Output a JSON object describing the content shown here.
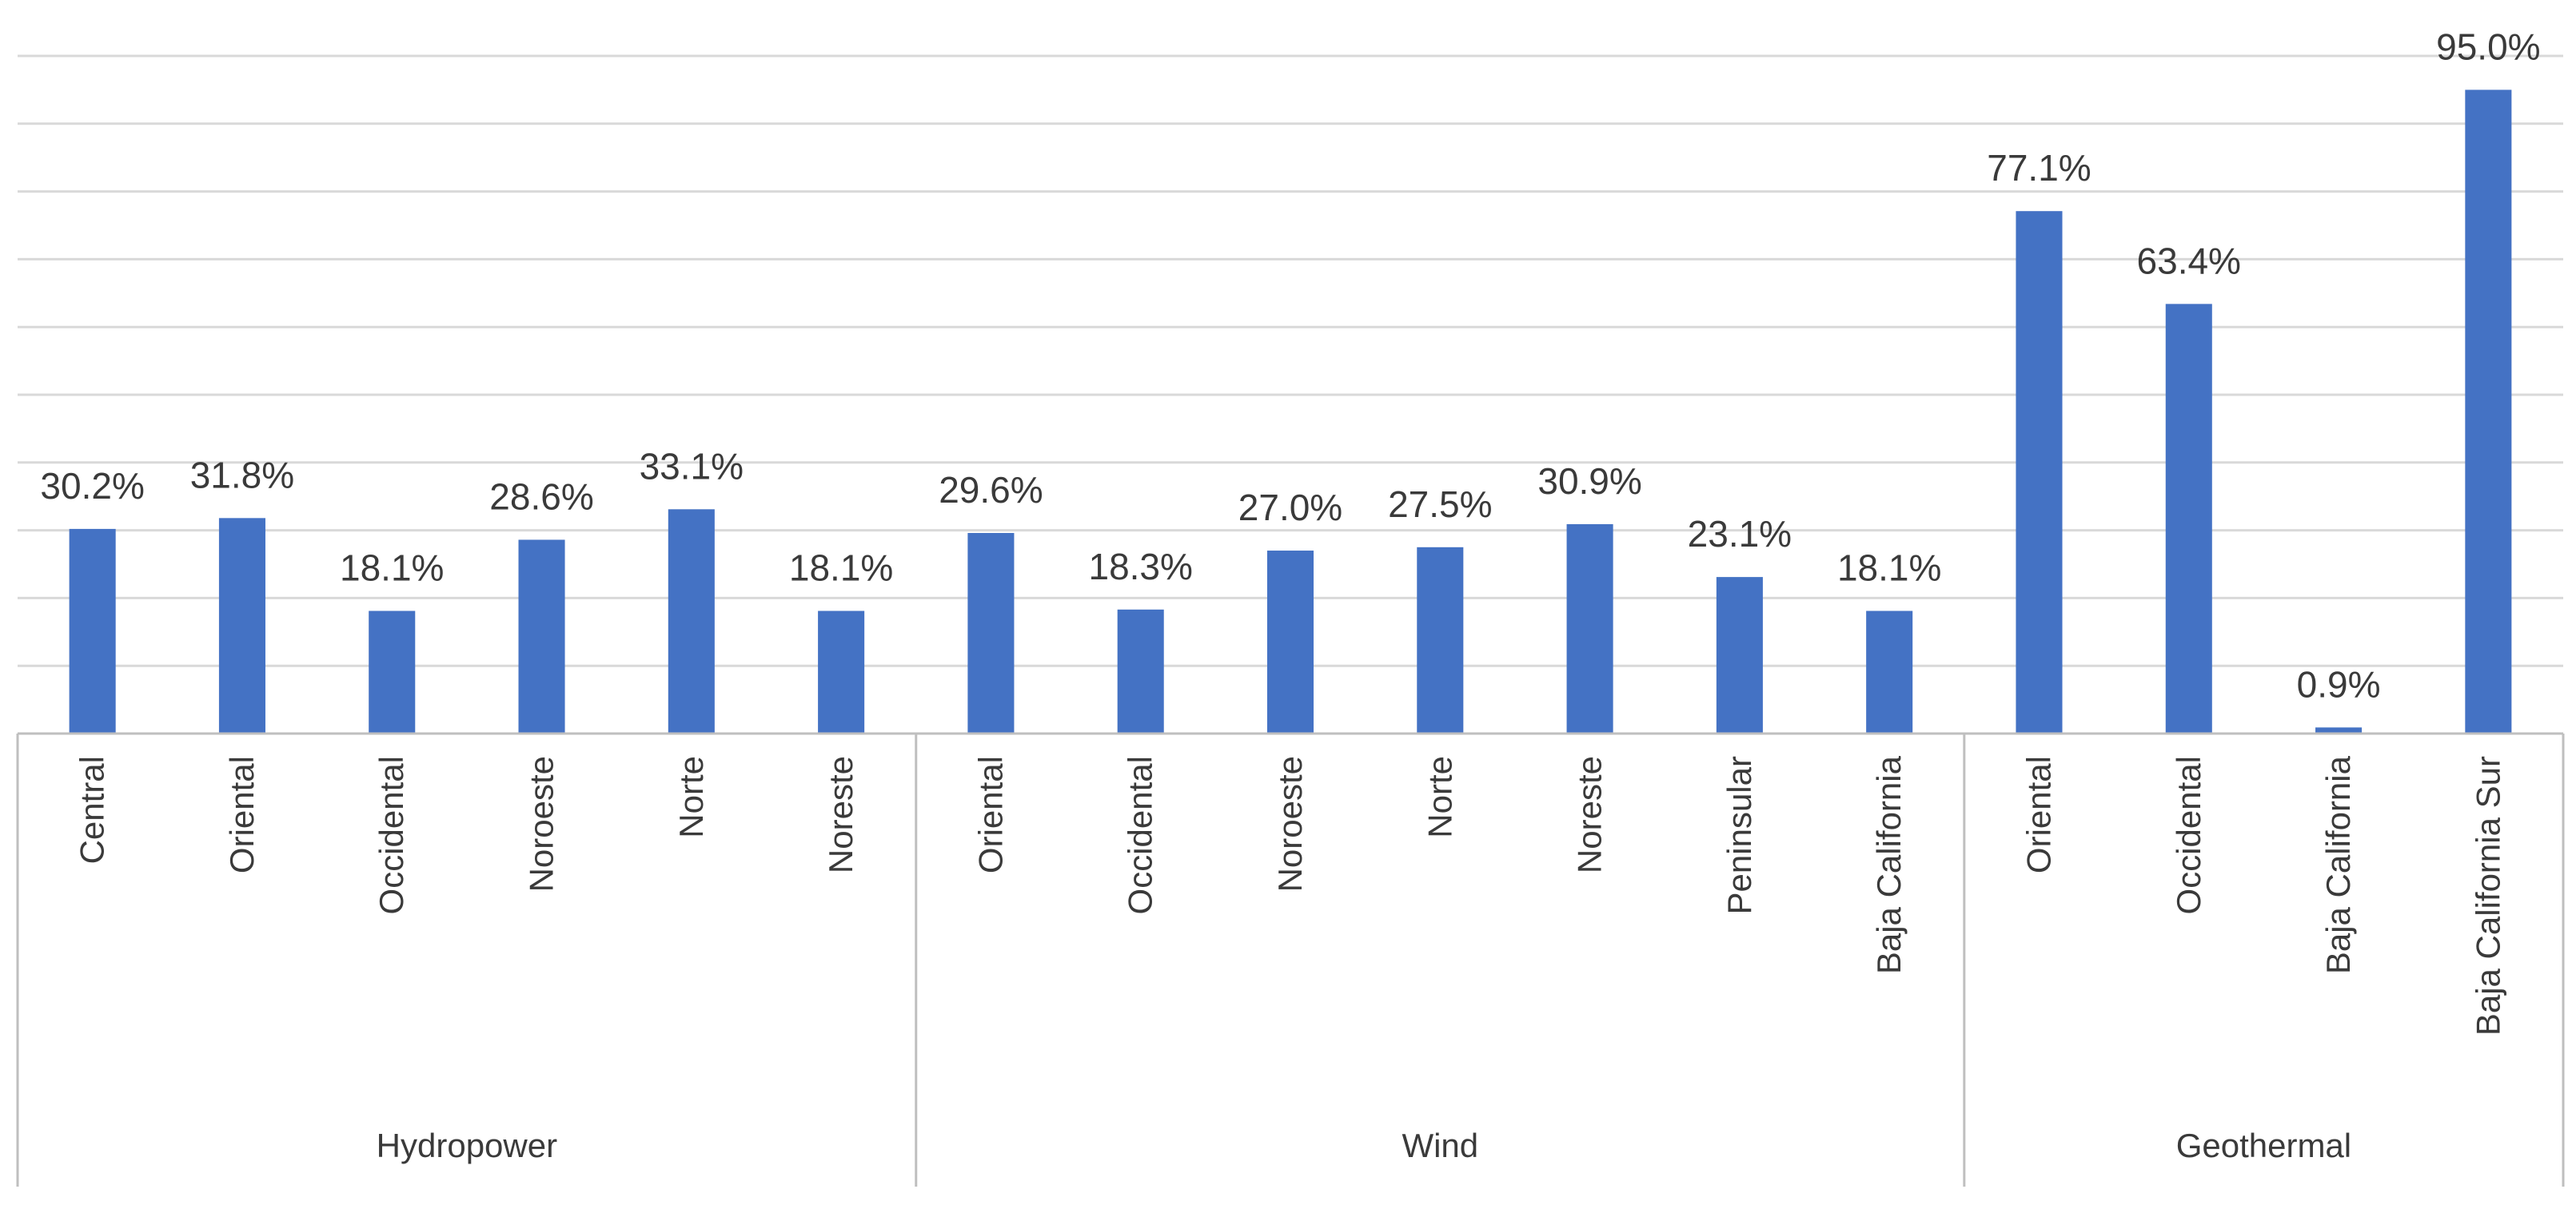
{
  "chart_data": {
    "type": "bar",
    "title": "",
    "xlabel": "",
    "ylabel": "",
    "ylim": [
      0,
      100
    ],
    "grid": true,
    "legend": "none",
    "bar_color": "#4472c4",
    "grid_color": "#d9d9d9",
    "axis_color": "#bfbfbf",
    "groups": [
      {
        "name": "Hydropower",
        "categories": [
          "Central",
          "Oriental",
          "Occidental",
          "Noroeste",
          "Norte",
          "Noreste"
        ],
        "values": [
          30.2,
          31.8,
          18.1,
          28.6,
          33.1,
          18.1
        ],
        "labels": [
          "30.2%",
          "31.8%",
          "18.1%",
          "28.6%",
          "33.1%",
          "18.1%"
        ]
      },
      {
        "name": "Wind",
        "categories": [
          "Oriental",
          "Occidental",
          "Noroeste",
          "Norte",
          "Noreste",
          "Peninsular",
          "Baja California"
        ],
        "values": [
          29.6,
          18.3,
          27.0,
          27.5,
          30.9,
          23.1,
          18.1
        ],
        "labels": [
          "29.6%",
          "18.3%",
          "27.0%",
          "27.5%",
          "30.9%",
          "23.1%",
          "18.1%"
        ]
      },
      {
        "name": "Geothermal",
        "categories": [
          "Oriental",
          "Occidental",
          "Baja California",
          "Baja California Sur"
        ],
        "values": [
          77.1,
          63.4,
          0.9,
          95.0
        ],
        "labels": [
          "77.1%",
          "63.4%",
          "0.9%",
          "95.0%"
        ]
      }
    ]
  }
}
